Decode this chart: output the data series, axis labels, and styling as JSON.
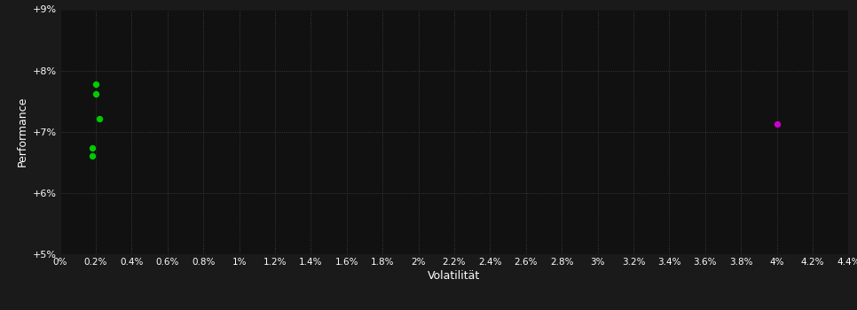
{
  "background_color": "#1a1a1a",
  "plot_bg_color": "#111111",
  "grid_color": "#444444",
  "text_color": "#ffffff",
  "xlabel": "Volatilität",
  "ylabel": "Performance",
  "xlim": [
    0,
    0.044
  ],
  "ylim": [
    0.05,
    0.09
  ],
  "xtick_values": [
    0.0,
    0.002,
    0.004,
    0.006,
    0.008,
    0.01,
    0.012,
    0.014,
    0.016,
    0.018,
    0.02,
    0.022,
    0.024,
    0.026,
    0.028,
    0.03,
    0.032,
    0.034,
    0.036,
    0.038,
    0.04,
    0.042,
    0.044
  ],
  "xtick_labels": [
    "0%",
    "0.2%",
    "0.4%",
    "0.6%",
    "0.8%",
    "1%",
    "1.2%",
    "1.4%",
    "1.6%",
    "1.8%",
    "2%",
    "2.2%",
    "2.4%",
    "2.6%",
    "2.8%",
    "3%",
    "3.2%",
    "3.4%",
    "3.6%",
    "3.8%",
    "4%",
    "4.2%",
    "4.4%"
  ],
  "ytick_values": [
    0.05,
    0.06,
    0.07,
    0.08,
    0.09
  ],
  "ytick_labels": [
    "+5%",
    "+6%",
    "+7%",
    "+8%",
    "+9%"
  ],
  "green_points": [
    [
      0.002,
      0.0778
    ],
    [
      0.002,
      0.0762
    ],
    [
      0.0022,
      0.0722
    ],
    [
      0.0018,
      0.0674
    ],
    [
      0.0018,
      0.066
    ]
  ],
  "magenta_points": [
    [
      0.04,
      0.0712
    ]
  ],
  "green_color": "#00cc00",
  "magenta_color": "#cc00cc",
  "point_size": 28
}
